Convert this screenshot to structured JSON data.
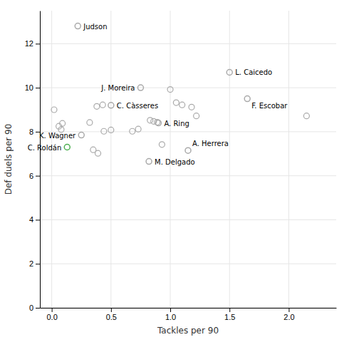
{
  "chart_data": {
    "type": "scatter",
    "xlabel": "Tackles per 90",
    "ylabel": "Def duels per 90",
    "xlim": [
      -0.1,
      2.4
    ],
    "ylim": [
      0,
      13.5
    ],
    "xticks": [
      {
        "value": 0.0,
        "label": "0.0"
      },
      0.5,
      {
        "value": 1.0,
        "label": "1.0"
      },
      1.5,
      {
        "value": 2.0,
        "label": "2.0"
      }
    ],
    "yticks": [
      0,
      2,
      4,
      6,
      8,
      10,
      12
    ],
    "grid": true,
    "series": [
      {
        "color": "#aaaaaa",
        "x": [
          0.02,
          0.06,
          0.08,
          0.09,
          0.38,
          0.43,
          0.32,
          0.44,
          0.5,
          0.35,
          0.39,
          0.68,
          0.73,
          0.83,
          0.86,
          0.89,
          0.93,
          1.0,
          1.05,
          1.1,
          1.18,
          1.22,
          2.15
        ],
        "values": [
          9.0,
          8.25,
          8.1,
          8.38,
          9.15,
          9.22,
          8.42,
          8.02,
          8.08,
          7.18,
          7.02,
          8.02,
          8.12,
          8.52,
          8.47,
          8.43,
          7.42,
          9.92,
          9.32,
          9.22,
          9.12,
          8.72,
          8.72
        ]
      },
      {
        "colors": [
          "#aaaaaa",
          "#aaaaaa",
          "#aaaaaa",
          "#aaaaaa",
          "#aaaaaa",
          "#aaaaaa",
          "#aaaaaa",
          "#4caf50",
          "#aaaaaa",
          "#aaaaaa"
        ],
        "x": [
          0.22,
          0.75,
          0.5,
          1.5,
          1.65,
          0.9,
          0.25,
          0.13,
          0.82,
          1.15
        ],
        "values": [
          12.8,
          10.0,
          9.2,
          10.7,
          9.5,
          8.4,
          7.85,
          7.3,
          6.65,
          7.15
        ],
        "labels": [
          "Judson",
          "J. Moreira",
          "C. Càsseres",
          "L. Caicedo",
          "F. Escobar",
          "A. Ring",
          "K. Wagner",
          "C. Roldán",
          "M. Delgado",
          "A. Herrera"
        ]
      }
    ]
  }
}
